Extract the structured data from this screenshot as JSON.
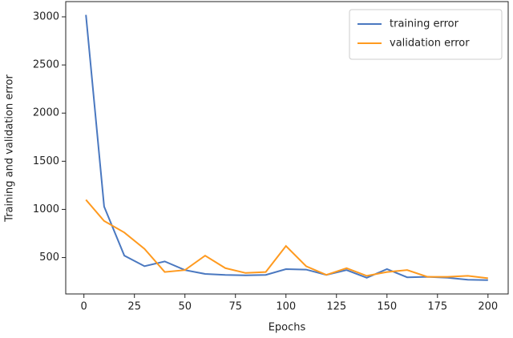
{
  "chart_data": {
    "type": "line",
    "x_label": "Epochs",
    "y_label": "Training and validation error",
    "x": [
      1,
      10,
      20,
      30,
      40,
      50,
      60,
      70,
      80,
      90,
      100,
      110,
      120,
      130,
      140,
      150,
      160,
      170,
      180,
      190,
      200
    ],
    "series": [
      {
        "name": "training error",
        "color": "#4a78c0",
        "values": [
          3020,
          1030,
          520,
          410,
          460,
          370,
          330,
          320,
          315,
          320,
          380,
          375,
          320,
          370,
          290,
          380,
          295,
          300,
          290,
          270,
          265
        ]
      },
      {
        "name": "validation error",
        "color": "#ff9a1f",
        "values": [
          1100,
          880,
          760,
          590,
          350,
          370,
          520,
          390,
          340,
          350,
          620,
          410,
          320,
          390,
          310,
          350,
          370,
          300,
          300,
          310,
          285
        ]
      }
    ],
    "xlim": [
      -9,
      210
    ],
    "ylim": [
      122,
      3158
    ],
    "xticks": [
      0,
      25,
      50,
      75,
      100,
      125,
      150,
      175,
      200
    ],
    "yticks": [
      500,
      1000,
      1500,
      2000,
      2500,
      3000
    ],
    "legend": "upper right"
  }
}
